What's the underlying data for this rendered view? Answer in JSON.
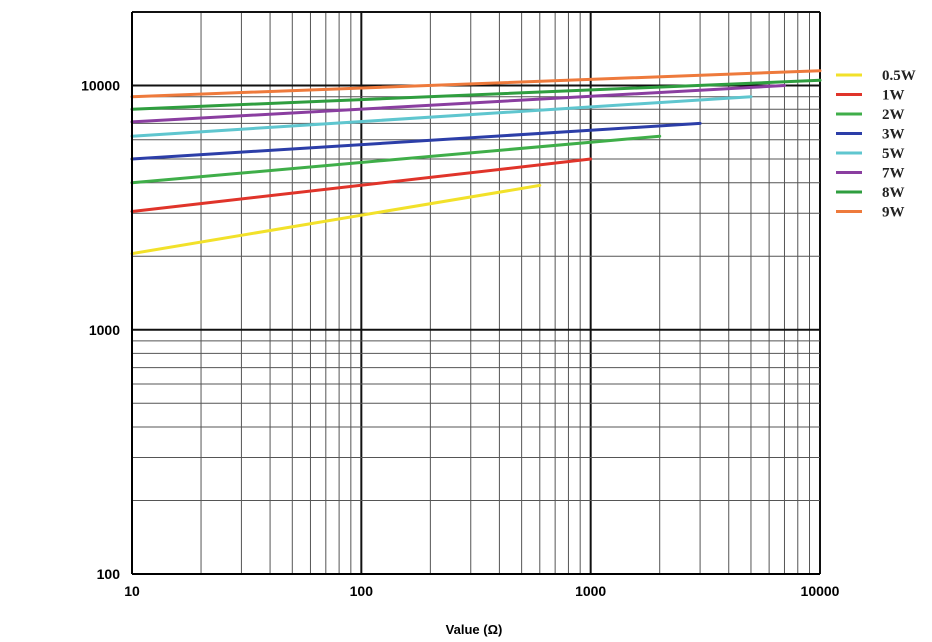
{
  "chart_data": {
    "type": "line",
    "title": "",
    "xlabel": "Value (Ω)",
    "ylabel": "",
    "x_scale": "log",
    "y_scale": "log",
    "xlim": [
      10,
      10000
    ],
    "ylim": [
      100,
      20000
    ],
    "x_ticks": [
      10,
      100,
      1000,
      10000
    ],
    "x_tick_labels": [
      "10",
      "100",
      "1000",
      "10000"
    ],
    "y_ticks": [
      100,
      1000,
      10000
    ],
    "y_tick_labels": [
      "100",
      "1000",
      "10000"
    ],
    "grid": true,
    "legend_position": "right",
    "series": [
      {
        "name": "0.5W",
        "color": "#f2e12a",
        "x": [
          10,
          600
        ],
        "y": [
          2050,
          3900
        ]
      },
      {
        "name": "1W",
        "color": "#e0342a",
        "x": [
          10,
          1000
        ],
        "y": [
          3050,
          5000
        ]
      },
      {
        "name": "2W",
        "color": "#3fae49",
        "x": [
          10,
          2000
        ],
        "y": [
          4000,
          6200
        ]
      },
      {
        "name": "3W",
        "color": "#2c3ea8",
        "x": [
          10,
          3000
        ],
        "y": [
          5000,
          7000
        ]
      },
      {
        "name": "5W",
        "color": "#5fc6cf",
        "x": [
          10,
          5000
        ],
        "y": [
          6200,
          9000
        ]
      },
      {
        "name": "7W",
        "color": "#8a3ea0",
        "x": [
          10,
          7000
        ],
        "y": [
          7100,
          10000
        ]
      },
      {
        "name": "8W",
        "color": "#2f9e3f",
        "x": [
          10,
          10000
        ],
        "y": [
          8000,
          10500
        ]
      },
      {
        "name": "9W",
        "color": "#ee7a3c",
        "x": [
          10,
          10000
        ],
        "y": [
          9000,
          11500
        ]
      }
    ]
  }
}
